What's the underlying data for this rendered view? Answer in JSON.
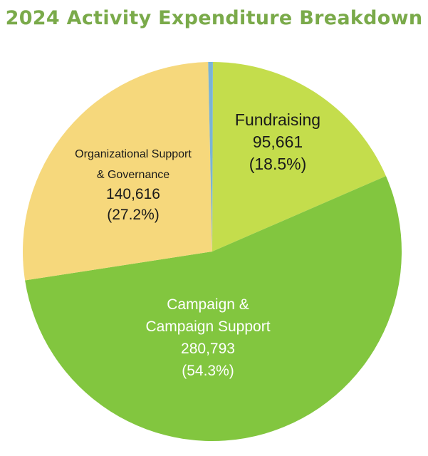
{
  "chart_data": {
    "type": "pie",
    "title": "2024 Activity Expenditure Breakdown",
    "legend": "none",
    "slices": [
      {
        "label_lines": [
          "Fundraising"
        ],
        "value": 95661,
        "value_text": "95,661",
        "percent": 18.5,
        "percent_text": "(18.5%)",
        "color": "#c4dd4c"
      },
      {
        "label_lines": [
          "Campaign &",
          "Campaign Support"
        ],
        "value": 280793,
        "value_text": "280,793",
        "percent": 54.3,
        "percent_text": "(54.3%)",
        "color": "#82c63f"
      },
      {
        "label_lines": [
          "Organizational Support",
          "& Governance"
        ],
        "value": 140616,
        "value_text": "140,616",
        "percent": 27.2,
        "percent_text": "(27.2%)",
        "color": "#f6d87c"
      },
      {
        "label_lines": [],
        "value": null,
        "percent": 0.4,
        "color": "#7ab4d6"
      }
    ]
  }
}
